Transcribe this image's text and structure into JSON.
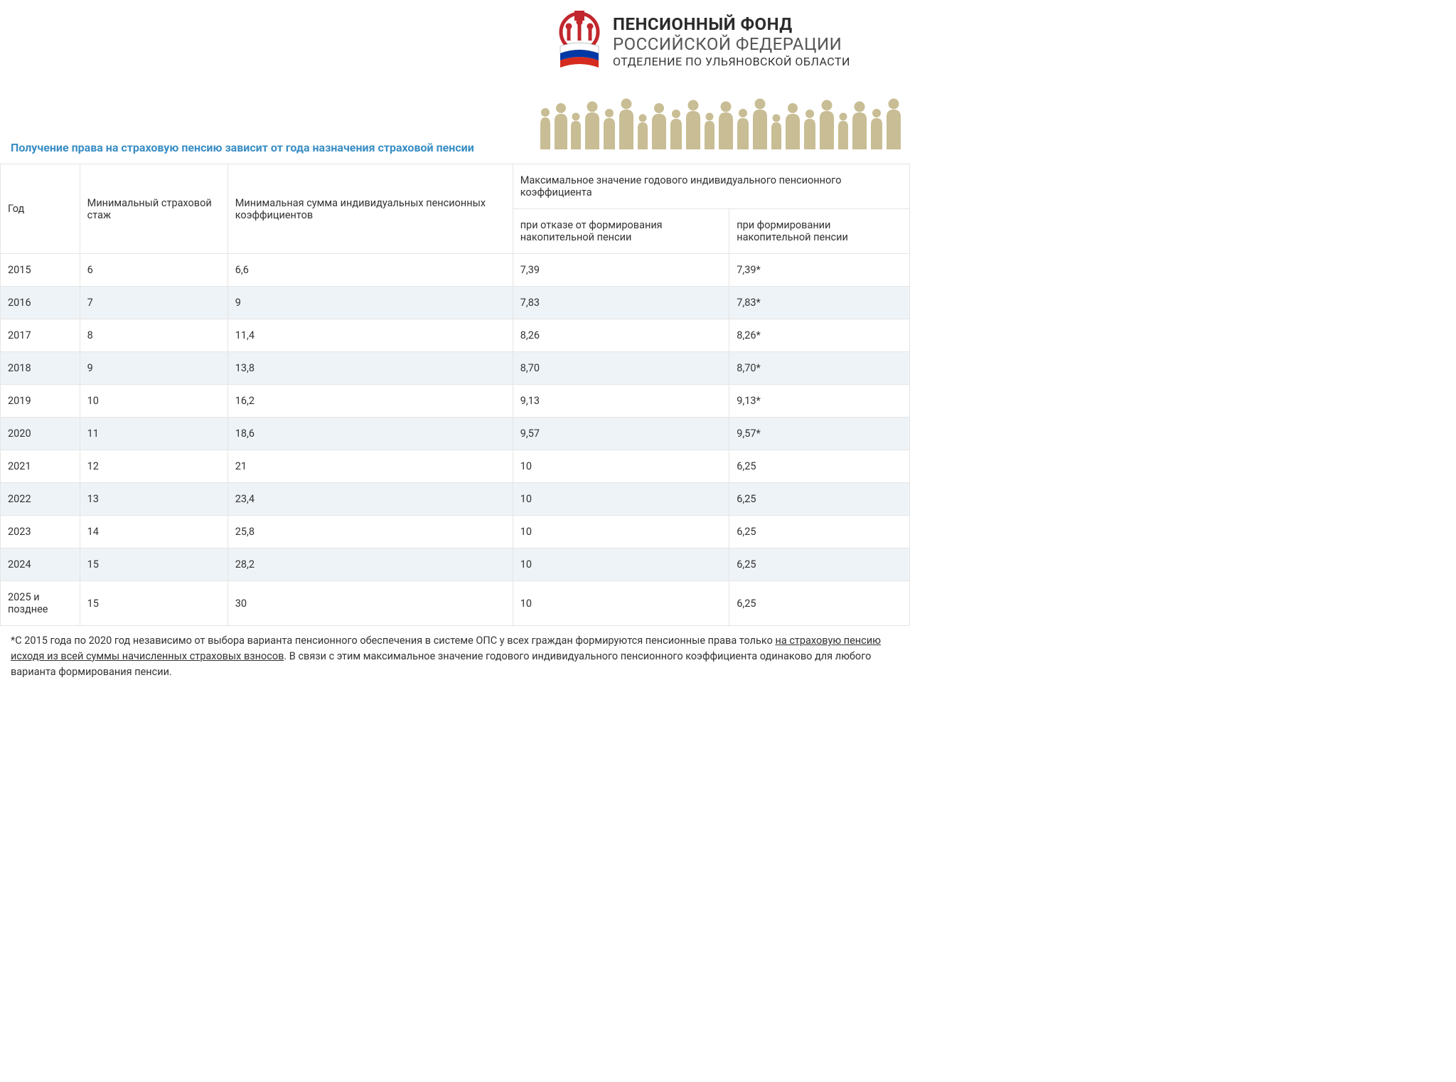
{
  "org": {
    "line1": "ПЕНСИОННЫЙ ФОНД",
    "line2": "РОССИЙСКОЙ ФЕДЕРАЦИИ",
    "line3": "ОТДЕЛЕНИЕ ПО УЛЬЯНОВСКОЙ ОБЛАСТИ"
  },
  "title": "Получение права на страховую пенсию зависит от года назначения страховой пенсии",
  "table": {
    "columns": {
      "year": "Год",
      "stazh": "Минимальный страховой стаж",
      "coef": "Минимальная сумма индивидуальных пенсионных коэффициентов",
      "max_header": "Максимальное значение годового индивидуального пенсионного коэффициента",
      "max_refuse": "при отказе от формирования накопительной пенсии",
      "max_form": "при формировании накопительной пенсии"
    },
    "rows": [
      {
        "year": "2015",
        "stazh": "6",
        "coef": "6,6",
        "max_refuse": "7,39",
        "max_form": "7,39*"
      },
      {
        "year": "2016",
        "stazh": "7",
        "coef": "9",
        "max_refuse": "7,83",
        "max_form": "7,83*"
      },
      {
        "year": "2017",
        "stazh": "8",
        "coef": "11,4",
        "max_refuse": "8,26",
        "max_form": "8,26*"
      },
      {
        "year": "2018",
        "stazh": "9",
        "coef": "13,8",
        "max_refuse": "8,70",
        "max_form": "8,70*"
      },
      {
        "year": "2019",
        "stazh": "10",
        "coef": "16,2",
        "max_refuse": "9,13",
        "max_form": "9,13*"
      },
      {
        "year": "2020",
        "stazh": "11",
        "coef": "18,6",
        "max_refuse": "9,57",
        "max_form": "9,57*"
      },
      {
        "year": "2021",
        "stazh": "12",
        "coef": "21",
        "max_refuse": "10",
        "max_form": "6,25"
      },
      {
        "year": "2022",
        "stazh": "13",
        "coef": "23,4",
        "max_refuse": "10",
        "max_form": "6,25"
      },
      {
        "year": "2023",
        "stazh": "14",
        "coef": "25,8",
        "max_refuse": "10",
        "max_form": "6,25"
      },
      {
        "year": "2024",
        "stazh": "15",
        "coef": "28,2",
        "max_refuse": "10",
        "max_form": "6,25"
      },
      {
        "year": "2025 и позднее",
        "stazh": "15",
        "coef": "30",
        "max_refuse": "10",
        "max_form": "6,25"
      }
    ],
    "alt_row_bg": "#eef3f7",
    "border_color": "#e5e5e5"
  },
  "footnote": {
    "prefix": "*С 2015 года по 2020 год независимо от выбора варианта пенсионного обеспечения в системе ОПС у всех граждан формируются пенсионные права только ",
    "underlined": "на страховую пенсию исходя из всей суммы начисленных страховых взносов",
    "suffix": ". В связи с этим максимальное значение годового индивидуального пенсионного коэффициента одинаково для любого варианта формирования пенсии."
  },
  "colors": {
    "title_color": "#3a8ec4",
    "text_color": "#333333",
    "logo_red": "#c1272d",
    "flag_white": "#ffffff",
    "flag_blue": "#0039a6",
    "flag_red": "#d52b1e",
    "silhouette_fill": "#b6a871"
  }
}
